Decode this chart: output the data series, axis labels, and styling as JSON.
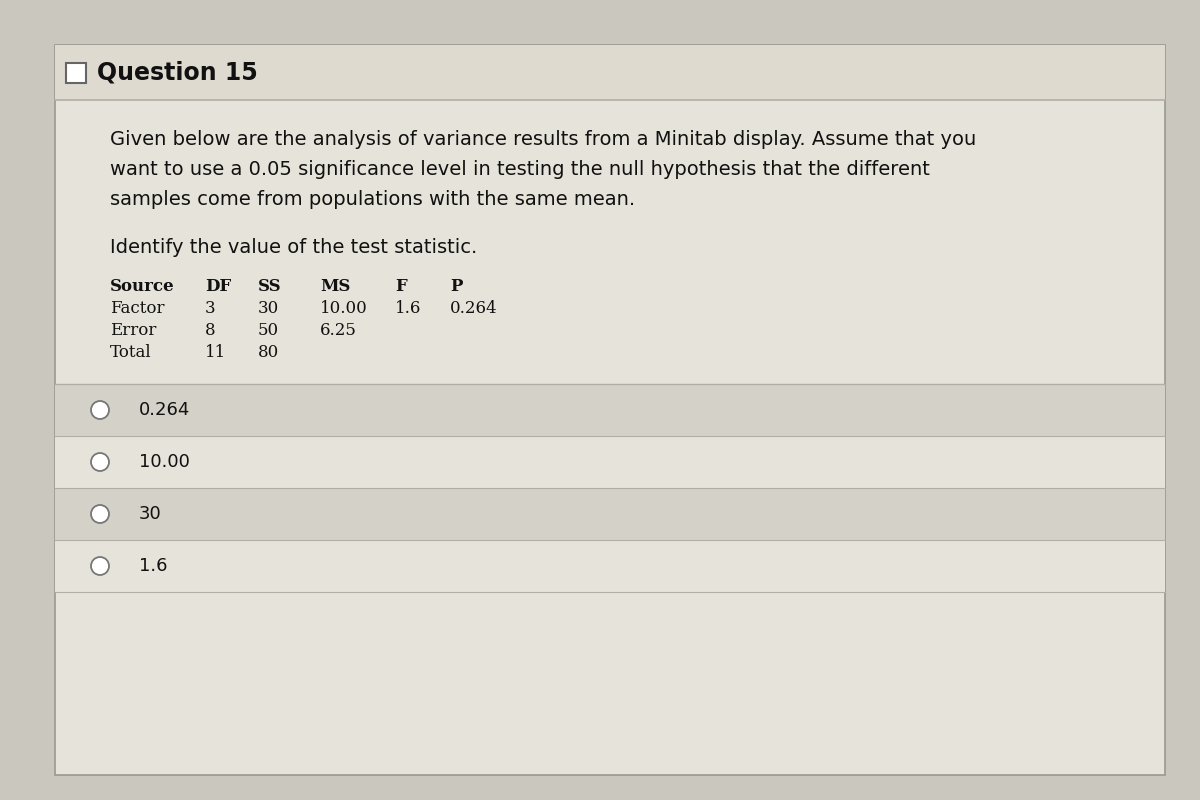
{
  "title": "Question 15",
  "body_lines": [
    "Given below are the analysis of variance results from a Minitab display. Assume that you",
    "want to use a 0.05 significance level in testing the null hypothesis that the different",
    "samples come from populations with the same mean."
  ],
  "sub_question": "Identify the value of the test statistic.",
  "table_headers": [
    "Source",
    "DF",
    "SS",
    "MS",
    "F",
    "P"
  ],
  "table_rows": [
    [
      "Factor",
      "3",
      "30",
      "10.00",
      "1.6",
      "0.264"
    ],
    [
      "Error",
      "8",
      "50",
      "6.25",
      "",
      ""
    ],
    [
      "Total",
      "11",
      "80",
      "",
      "",
      ""
    ]
  ],
  "options": [
    "0.264",
    "10.00",
    "30",
    "1.6"
  ],
  "outer_bg": "#c9c7be",
  "card_color": "#e6e3da",
  "title_bar_color": "#dedad0",
  "option_row_colors": [
    "#d4d1c8",
    "#e6e3da",
    "#d4d1c8",
    "#e6e3da"
  ],
  "separator_color": "#b0aea6",
  "font_color": "#111111",
  "table_font_size": 12,
  "body_font_size": 14,
  "title_font_size": 17
}
